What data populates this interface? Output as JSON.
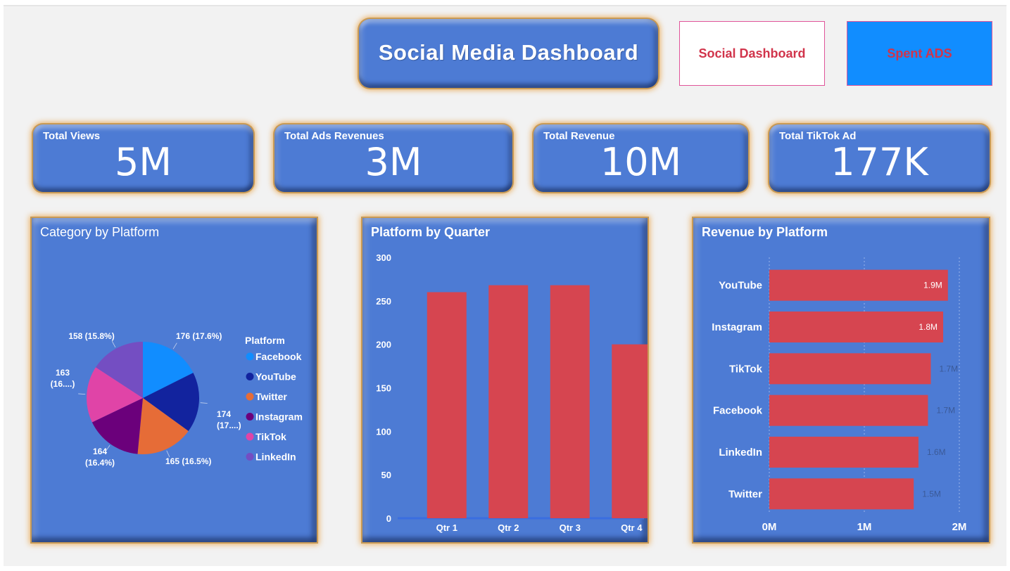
{
  "header": {
    "title": "Social Media Dashboard",
    "nav": [
      {
        "label": "Social Dashboard",
        "bg": "#ffffff",
        "border": "#e0559a",
        "color": "#d1344b"
      },
      {
        "label": "Spent ADS",
        "bg": "#118dff",
        "border": "#e0559a",
        "color": "#d1344b"
      }
    ]
  },
  "kpis": [
    {
      "label": "Total Views",
      "value": "5M"
    },
    {
      "label": "Total Ads Revenues",
      "value": "3M"
    },
    {
      "label": "Total Revenue",
      "value": "10M"
    },
    {
      "label": "Total TikTok Ad",
      "value": "177K"
    }
  ],
  "panels": {
    "pie": {
      "title": "Category by Platform"
    },
    "quarter": {
      "title": "Platform by Quarter"
    },
    "revenue": {
      "title": "Revenue by Platform"
    }
  },
  "chart_data": [
    {
      "type": "pie",
      "title": "Category by Platform",
      "legend_title": "Platform",
      "legend_position": "right",
      "slices": [
        {
          "name": "Facebook",
          "value": 176,
          "label": "176 (17.6%)",
          "color": "#118dff"
        },
        {
          "name": "YouTube",
          "value": 174,
          "label": "174 (17....)",
          "color": "#12239e"
        },
        {
          "name": "Twitter",
          "value": 165,
          "label": "165 (16.5%)",
          "color": "#e66c37"
        },
        {
          "name": "Instagram",
          "value": 164,
          "label": "164 (16.4%)",
          "color": "#6b007b"
        },
        {
          "name": "TikTok",
          "value": 163,
          "label": "163 (16....)",
          "color": "#e044a7"
        },
        {
          "name": "LinkedIn",
          "value": 158,
          "label": "158 (15.8%)",
          "color": "#744ec2"
        }
      ]
    },
    {
      "type": "bar",
      "title": "Platform by Quarter",
      "categories": [
        "Qtr 1",
        "Qtr 2",
        "Qtr 3",
        "Qtr 4"
      ],
      "values": [
        260,
        268,
        268,
        200
      ],
      "ylim": [
        0,
        300
      ],
      "yticks": [
        "0",
        "50",
        "100",
        "150",
        "200",
        "250",
        "300"
      ],
      "color": "#d64550"
    },
    {
      "type": "bar",
      "orientation": "horizontal",
      "title": "Revenue by Platform",
      "categories": [
        "YouTube",
        "Instagram",
        "TikTok",
        "Facebook",
        "LinkedIn",
        "Twitter"
      ],
      "values": [
        1.88,
        1.83,
        1.7,
        1.67,
        1.57,
        1.52
      ],
      "labels": [
        "1.9M",
        "1.8M",
        "1.7M",
        "1.7M",
        "1.6M",
        "1.5M"
      ],
      "xlim": [
        0,
        2
      ],
      "xticks": [
        "0M",
        "1M",
        "2M"
      ],
      "color": "#d64550"
    }
  ]
}
